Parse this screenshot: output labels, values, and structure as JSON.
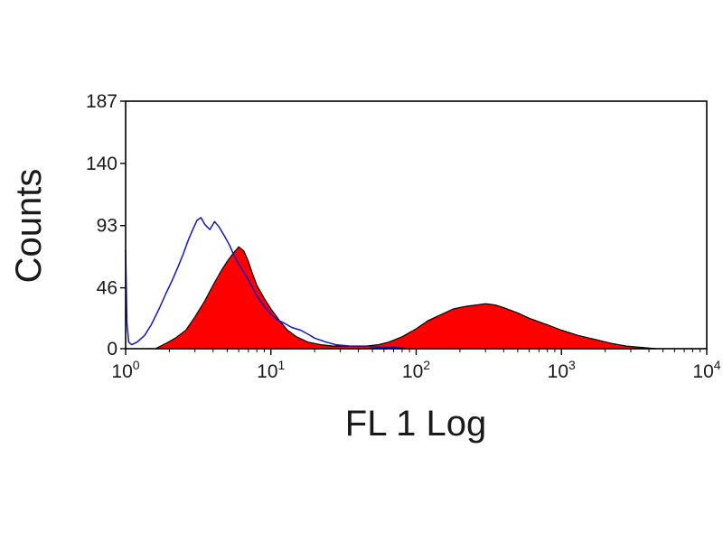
{
  "chart_data": {
    "type": "area",
    "title": "",
    "xlabel": "FL 1 Log",
    "ylabel": "Counts",
    "x_scale": "log",
    "xlim": [
      1,
      10000
    ],
    "ylim": [
      0,
      187
    ],
    "y_ticks": [
      "0",
      "46",
      "93",
      "140",
      "187"
    ],
    "x_ticks": [
      {
        "base": "10",
        "exp": "0"
      },
      {
        "base": "10",
        "exp": "1"
      },
      {
        "base": "10",
        "exp": "2"
      },
      {
        "base": "10",
        "exp": "3"
      },
      {
        "base": "10",
        "exp": "4"
      }
    ],
    "grid": false,
    "legend": "none",
    "series": [
      {
        "style": "filled",
        "color": "#ff0000",
        "outline": "#000000",
        "x": [
          1.6,
          1.9,
          2.2,
          2.6,
          3.0,
          3.5,
          4.0,
          4.5,
          5.0,
          5.5,
          6.0,
          6.5,
          7.0,
          7.5,
          8.0,
          9.0,
          10.0,
          11.5,
          13.0,
          15.0,
          18.0,
          22.0,
          27.0,
          35.0,
          45.0,
          55.0,
          65.0,
          80.0,
          100.0,
          120.0,
          150.0,
          180.0,
          220.0,
          260.0,
          300.0,
          350.0,
          400.0,
          500.0,
          600.0,
          800.0,
          1000.0,
          1300.0,
          1700.0,
          2200.0,
          2800.0,
          3500.0,
          4500.0
        ],
        "values": [
          0,
          4,
          8,
          14,
          24,
          36,
          48,
          58,
          66,
          72,
          77,
          74,
          66,
          56,
          48,
          38,
          30,
          21,
          14,
          9,
          5,
          3,
          2,
          2,
          2,
          3,
          5,
          9,
          15,
          21,
          26,
          30,
          32,
          33,
          34,
          33,
          31,
          27,
          23,
          18,
          14,
          10,
          7,
          4,
          2,
          1,
          0
        ]
      },
      {
        "style": "line",
        "color": "#1515c8",
        "x": [
          1.0,
          1.02,
          1.05,
          1.1,
          1.2,
          1.35,
          1.5,
          1.7,
          1.9,
          2.1,
          2.3,
          2.5,
          2.7,
          2.9,
          3.1,
          3.3,
          3.5,
          3.8,
          4.1,
          4.4,
          4.8,
          5.2,
          5.6,
          6.0,
          6.5,
          7.0,
          7.5,
          8.0,
          9.0,
          10.0,
          11.0,
          12.0,
          14.0,
          16.0,
          18.0,
          20.0,
          24.0,
          28.0,
          35.0,
          45.0,
          55.0,
          70.0,
          90.0
        ],
        "values": [
          75,
          20,
          5,
          3,
          5,
          10,
          18,
          30,
          42,
          52,
          62,
          72,
          82,
          90,
          97,
          99,
          94,
          90,
          96,
          92,
          85,
          78,
          70,
          64,
          58,
          52,
          46,
          40,
          32,
          26,
          22,
          20,
          16,
          14,
          11,
          8,
          5,
          3,
          2,
          2,
          1,
          1,
          0
        ]
      }
    ]
  }
}
